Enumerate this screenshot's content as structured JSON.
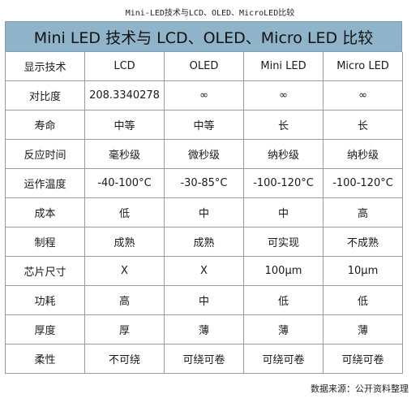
{
  "caption": "Mini-LED技术与LCD、OLED、MicroLED比较",
  "title": "Mini LED 技术与 LCD、OLED、Micro LED 比较",
  "table": {
    "header": [
      "显示技术",
      "LCD",
      "OLED",
      "Mini LED",
      "Micro LED"
    ],
    "rows": [
      [
        "对比度",
        "208.3340278",
        "∞",
        "∞",
        "∞"
      ],
      [
        "寿命",
        "中等",
        "中等",
        "长",
        "长"
      ],
      [
        "反应时间",
        "毫秒级",
        "微秒级",
        "纳秒级",
        "纳秒级"
      ],
      [
        "运作温度",
        "-40-100°C",
        "-30-85°C",
        "-100-120°C",
        "-100-120°C"
      ],
      [
        "成本",
        "低",
        "中",
        "中",
        "高"
      ],
      [
        "制程",
        "成熟",
        "成熟",
        "可实现",
        "不成熟"
      ],
      [
        "芯片尺寸",
        "X",
        "X",
        "100μm",
        "10μm"
      ],
      [
        "功耗",
        "高",
        "中",
        "低",
        "低"
      ],
      [
        "厚度",
        "厚",
        "薄",
        "薄",
        "薄"
      ],
      [
        "柔性",
        "不可绕",
        "可绕可卷",
        "可绕可卷",
        "可绕可卷"
      ]
    ]
  },
  "footer": "数据来源：公开资料整理"
}
